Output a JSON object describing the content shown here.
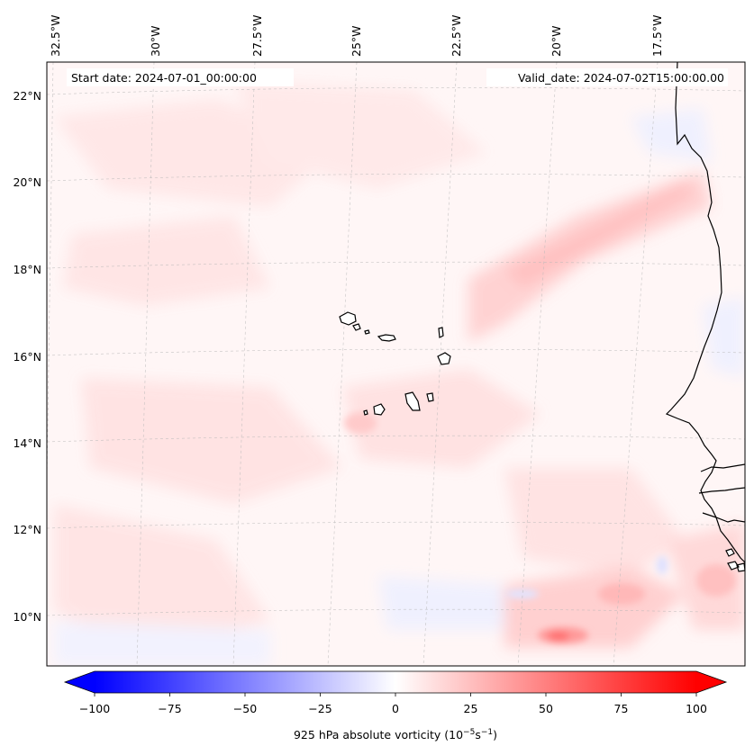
{
  "map": {
    "start_date": "Start date: 2024-07-01_00:00:00",
    "valid_date": "Valid_date: 2024-07-02T15:00:00.00",
    "longitude_labels": [
      "32.5°W",
      "30°W",
      "27.5°W",
      "25°W",
      "22.5°W",
      "20°W",
      "17.5°W"
    ],
    "latitude_labels": [
      "22°N",
      "20°N",
      "18°N",
      "16°N",
      "14°N",
      "12°N",
      "10°N"
    ],
    "field": "925 hPa absolute vorticity",
    "gridlines": true
  },
  "colorbar": {
    "label": "925 hPa absolute vorticity (10",
    "label_exp1": "−5",
    "label_mid": "s",
    "label_exp2": "−1",
    "label_end": ")",
    "ticks": [
      "−100",
      "−75",
      "−50",
      "−25",
      "0",
      "25",
      "50",
      "75",
      "100"
    ],
    "vmin": -100,
    "vmax": 100,
    "extend": "both",
    "colormap": "bwr",
    "colors": {
      "low": "#0000ff",
      "mid": "#ffffff",
      "high": "#ff0000"
    }
  }
}
